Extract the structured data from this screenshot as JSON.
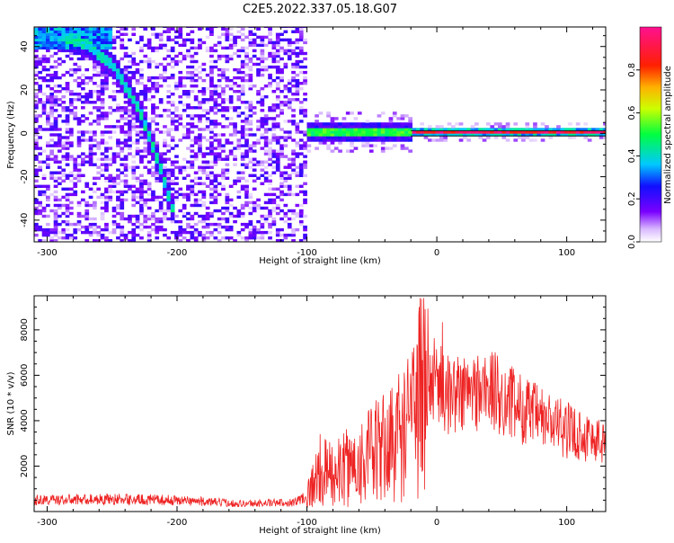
{
  "title": "C2E5.2022.337.05.18.G07",
  "colors": {
    "snr_line": "#ee2222",
    "frame": "#000000",
    "background": "#ffffff"
  },
  "chart_data": [
    {
      "type": "heatmap",
      "xlabel": "Height of straight line (km)",
      "ylabel": "Frequency (Hz)",
      "xlim": [
        -310,
        130
      ],
      "ylim": [
        -50,
        49
      ],
      "x_ticks": [
        "-300",
        "-200",
        "-100",
        "0",
        "100"
      ],
      "y_ticks": [
        "-40",
        "-20",
        "0",
        "20",
        "40"
      ],
      "colorbar": {
        "label": "Normalized spectral amplitude",
        "range": [
          0,
          1
        ],
        "ticks": [
          "0.0",
          "0.2",
          "0.4",
          "0.6",
          "0.8"
        ],
        "colormap": "rainbow (purple → blue → cyan → green → yellow → orange → red → magenta)"
      },
      "features": [
        {
          "name": "descending-ridge",
          "x": [
            -310,
            -290,
            -270,
            -250,
            -230,
            -215,
            -205
          ],
          "freq": [
            46,
            44,
            40,
            30,
            10,
            -15,
            -35
          ],
          "amplitude": 0.35
        },
        {
          "name": "central-ridge",
          "x": [
            -110,
            -20
          ],
          "freq": [
            0,
            0
          ],
          "amplitude": 0.45
        },
        {
          "name": "zero-line",
          "x": [
            -20,
            130
          ],
          "freq": [
            0,
            0
          ],
          "amplitude": 1.0
        }
      ]
    },
    {
      "type": "line",
      "xlabel": "Height of straight line (km)",
      "ylabel": "SNR (10 * v/v)",
      "xlim": [
        -310,
        130
      ],
      "ylim": [
        0,
        9500
      ],
      "x_ticks": [
        "-300",
        "-200",
        "-100",
        "0",
        "100"
      ],
      "y_ticks": [
        "2000",
        "4000",
        "6000",
        "8000"
      ],
      "series": [
        {
          "x": [
            -310,
            -250,
            -200,
            -150,
            -110,
            -100,
            -90,
            -80,
            -60,
            -40,
            -20,
            -12,
            -8,
            0,
            5,
            20,
            40,
            60,
            80,
            100,
            130
          ],
          "y": [
            500,
            550,
            500,
            350,
            400,
            700,
            1800,
            1600,
            2200,
            2800,
            3800,
            5200,
            5500,
            6000,
            5200,
            5200,
            5400,
            4700,
            4100,
            3600,
            3000
          ]
        }
      ]
    }
  ]
}
